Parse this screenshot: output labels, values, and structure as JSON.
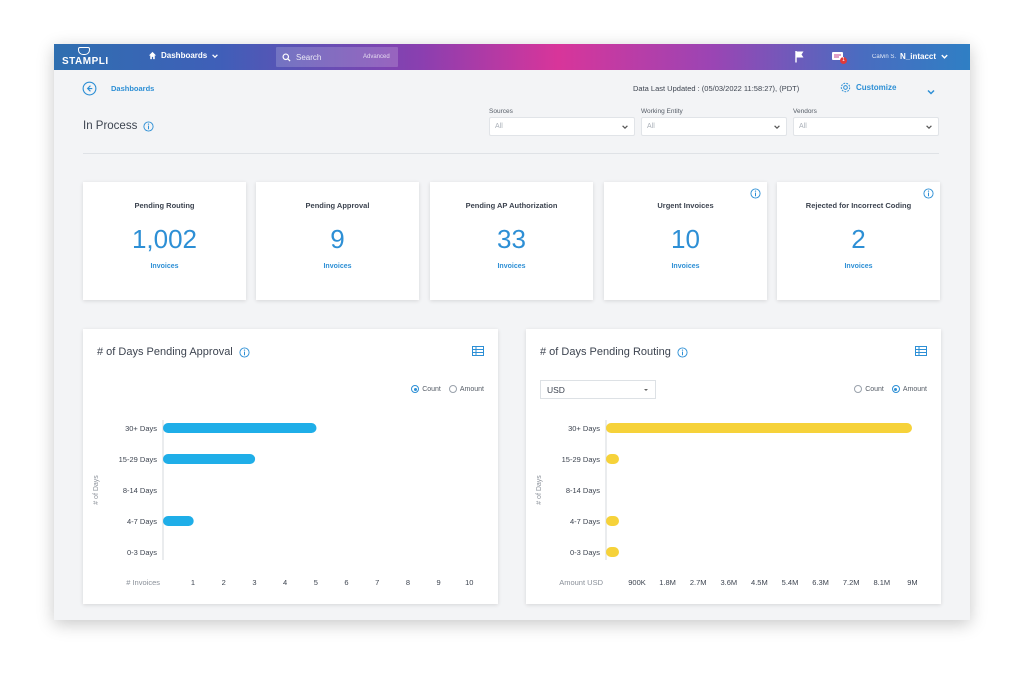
{
  "topbar": {
    "logo": "STAMPLI",
    "nav_label": "Dashboards",
    "search_placeholder": "Search",
    "search_advanced": "Advanced",
    "notification_count": "1",
    "user_name": "Calvin S.",
    "entity": "N_intacct"
  },
  "header": {
    "breadcrumb": "Dashboards",
    "updated": "Data Last Updated : (05/03/2022 11:58:27), (PDT)",
    "customize": "Customize",
    "title": "In Process"
  },
  "filters": [
    {
      "label": "Sources",
      "value": "All"
    },
    {
      "label": "Working Entity",
      "value": "All"
    },
    {
      "label": "Vendors",
      "value": "All"
    }
  ],
  "cards": [
    {
      "title": "Pending Routing",
      "value": "1,002",
      "unit": "Invoices",
      "info": false
    },
    {
      "title": "Pending Approval",
      "value": "9",
      "unit": "Invoices",
      "info": false
    },
    {
      "title": "Pending AP Authorization",
      "value": "33",
      "unit": "Invoices",
      "info": false
    },
    {
      "title": "Urgent Invoices",
      "value": "10",
      "unit": "Invoices",
      "info": true
    },
    {
      "title": "Rejected for Incorrect Coding",
      "value": "2",
      "unit": "Invoices",
      "info": true
    }
  ],
  "colors": {
    "accent": "#2d8fd5",
    "bar_blue": "#1faee8",
    "bar_yellow": "#f6d23a"
  },
  "panels": {
    "left": {
      "title": "# of Days Pending Approval",
      "radio_count": "Count",
      "radio_amount": "Amount",
      "selected": "Count"
    },
    "right": {
      "title": "# of Days Pending Routing",
      "currency": "USD",
      "radio_count": "Count",
      "radio_amount": "Amount",
      "selected": "Amount"
    }
  },
  "chart_data": [
    {
      "type": "bar",
      "orientation": "horizontal",
      "title": "# of Days Pending Approval",
      "categories": [
        "30+ Days",
        "15-29 Days",
        "8-14 Days",
        "4-7 Days",
        "0-3 Days"
      ],
      "values": [
        5,
        3,
        0,
        1,
        0
      ],
      "xlabel": "# Invoices",
      "ylabel": "# of Days",
      "xticks": [
        "1",
        "2",
        "3",
        "4",
        "5",
        "6",
        "7",
        "8",
        "9",
        "10"
      ],
      "xlim": [
        0,
        10
      ],
      "color": "#1faee8"
    },
    {
      "type": "bar",
      "orientation": "horizontal",
      "title": "# of Days Pending Routing",
      "categories": [
        "30+ Days",
        "15-29 Days",
        "8-14 Days",
        "4-7 Days",
        "0-3 Days"
      ],
      "values": [
        9000000,
        150000,
        0,
        150000,
        150000
      ],
      "xlabel": "Amount USD",
      "ylabel": "# of Days",
      "xticks": [
        "900K",
        "1.8M",
        "2.7M",
        "3.6M",
        "4.5M",
        "5.4M",
        "6.3M",
        "7.2M",
        "8.1M",
        "9M"
      ],
      "xlim": [
        0,
        9000000
      ],
      "color": "#f6d23a"
    }
  ]
}
